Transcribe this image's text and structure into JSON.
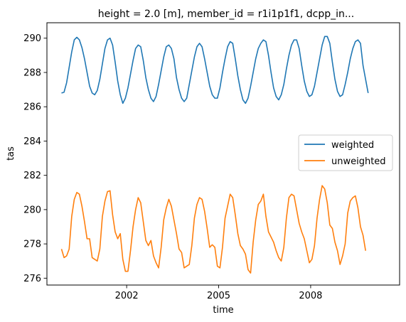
{
  "chart_data": {
    "type": "line",
    "title": "height = 2.0 [m], member_id = r1i1p1f1, dcpp_in...",
    "xlabel": "time",
    "ylabel": "tas",
    "xlim": [
      1999.4,
      2010.9
    ],
    "ylim": [
      275.6,
      290.9
    ],
    "x_ticks": [
      {
        "value": 2002,
        "label": "2002"
      },
      {
        "value": 2005,
        "label": "2005"
      },
      {
        "value": 2008,
        "label": "2008"
      }
    ],
    "y_ticks": [
      {
        "value": 276,
        "label": "276"
      },
      {
        "value": 278,
        "label": "278"
      },
      {
        "value": 280,
        "label": "280"
      },
      {
        "value": 282,
        "label": "282"
      },
      {
        "value": 284,
        "label": "284"
      },
      {
        "value": 286,
        "label": "286"
      },
      {
        "value": 288,
        "label": "288"
      },
      {
        "value": 290,
        "label": "290"
      }
    ],
    "grid": false,
    "legend": "center-right",
    "start_year": 1999.875,
    "step_years": 0.08333,
    "series": [
      {
        "name": "weighted",
        "color": "#1f77b4",
        "values": [
          286.8,
          286.85,
          287.4,
          288.3,
          289.2,
          289.9,
          290.05,
          289.9,
          289.45,
          288.8,
          288.0,
          287.2,
          286.8,
          286.7,
          286.95,
          287.6,
          288.5,
          289.4,
          289.9,
          290.0,
          289.6,
          288.6,
          287.5,
          286.7,
          286.2,
          286.5,
          287.1,
          287.9,
          288.7,
          289.4,
          289.6,
          289.5,
          288.7,
          287.7,
          287.0,
          286.5,
          286.3,
          286.6,
          287.3,
          288.1,
          288.9,
          289.5,
          289.6,
          289.4,
          288.8,
          287.7,
          287.0,
          286.5,
          286.3,
          286.5,
          287.3,
          288.1,
          288.9,
          289.5,
          289.7,
          289.5,
          288.8,
          288.0,
          287.2,
          286.7,
          286.5,
          286.5,
          287.1,
          288.0,
          288.8,
          289.5,
          289.8,
          289.7,
          288.8,
          287.8,
          287.0,
          286.4,
          286.2,
          286.5,
          287.2,
          288.0,
          288.8,
          289.4,
          289.7,
          289.9,
          289.8,
          289.0,
          288.0,
          287.1,
          286.6,
          286.4,
          286.7,
          287.3,
          288.2,
          289.0,
          289.6,
          289.9,
          289.9,
          289.4,
          288.4,
          287.5,
          286.9,
          286.6,
          286.7,
          287.2,
          288.0,
          288.8,
          289.6,
          290.1,
          290.1,
          289.7,
          288.6,
          287.6,
          286.9,
          286.6,
          286.7,
          287.3,
          288.0,
          288.8,
          289.4,
          289.8,
          289.9,
          289.7,
          288.4,
          287.6,
          286.8
        ]
      },
      {
        "name": "unweighted",
        "color": "#ff7f0e",
        "values": [
          277.7,
          277.2,
          277.3,
          277.7,
          279.6,
          280.6,
          281.0,
          280.9,
          280.2,
          279.3,
          278.3,
          278.3,
          277.2,
          277.1,
          277.0,
          277.7,
          279.6,
          280.5,
          281.05,
          281.1,
          279.7,
          278.7,
          278.3,
          278.6,
          277.1,
          276.4,
          276.4,
          277.6,
          279.0,
          280.0,
          280.7,
          280.4,
          279.3,
          278.2,
          277.9,
          278.2,
          277.3,
          276.9,
          276.6,
          277.8,
          279.4,
          280.1,
          280.6,
          280.2,
          279.4,
          278.6,
          277.7,
          277.5,
          276.6,
          276.7,
          276.8,
          277.9,
          279.5,
          280.3,
          280.7,
          280.6,
          279.9,
          278.9,
          277.8,
          277.95,
          277.8,
          276.7,
          276.6,
          277.8,
          279.5,
          280.2,
          280.9,
          280.7,
          279.7,
          278.6,
          277.9,
          277.7,
          277.4,
          276.5,
          276.3,
          278.1,
          279.4,
          280.3,
          280.5,
          280.9,
          279.6,
          278.7,
          278.4,
          278.1,
          277.6,
          277.2,
          277.0,
          277.8,
          279.5,
          280.7,
          280.9,
          280.8,
          280.0,
          279.2,
          278.7,
          278.3,
          277.6,
          276.9,
          277.1,
          277.9,
          279.5,
          280.6,
          281.4,
          281.2,
          280.4,
          279.1,
          278.9,
          278.1,
          277.6,
          276.8,
          277.3,
          278.0,
          279.8,
          280.5,
          280.7,
          280.8,
          280.1,
          279.0,
          278.5,
          277.6
        ]
      }
    ]
  }
}
